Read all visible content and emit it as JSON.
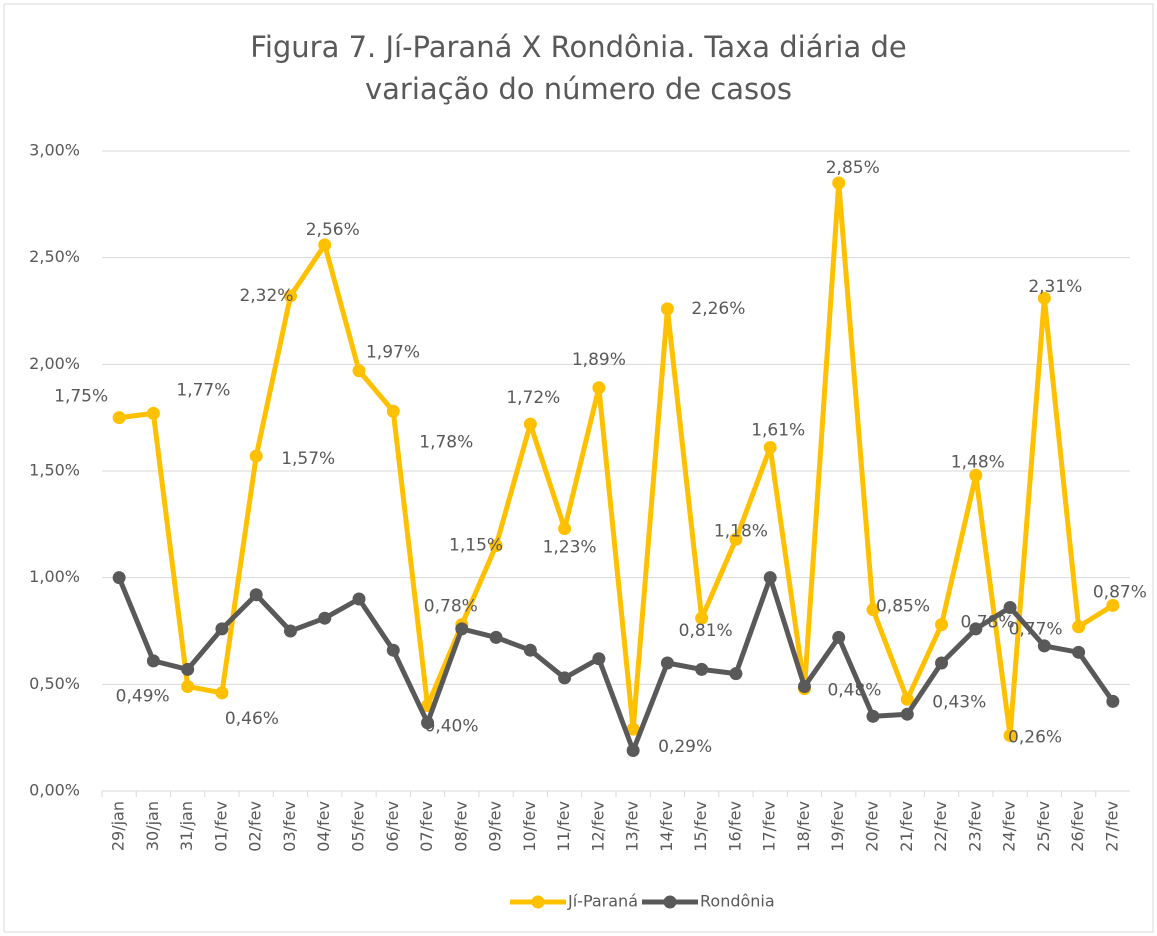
{
  "chart_data": {
    "type": "line",
    "title": "Figura 7. Jí-Paraná X Rondônia. Taxa diária de variação do número de casos",
    "categories": [
      "29/jan",
      "30/jan",
      "31/jan",
      "01/fev",
      "02/fev",
      "03/fev",
      "04/fev",
      "05/fev",
      "06/fev",
      "07/fev",
      "08/fev",
      "09/fev",
      "10/fev",
      "11/fev",
      "12/fev",
      "13/fev",
      "14/fev",
      "15/fev",
      "16/fev",
      "17/fev",
      "18/fev",
      "19/fev",
      "20/fev",
      "21/fev",
      "22/fev",
      "23/fev",
      "24/fev",
      "25/fev",
      "26/fev",
      "27/fev"
    ],
    "series": [
      {
        "name": "Jí-Paraná",
        "color": "#FFC000",
        "values": [
          1.75,
          1.77,
          0.49,
          0.46,
          1.57,
          2.32,
          2.56,
          1.97,
          1.78,
          0.4,
          0.78,
          1.15,
          1.72,
          1.23,
          1.89,
          0.29,
          2.26,
          0.81,
          1.18,
          1.61,
          0.48,
          2.85,
          0.85,
          0.43,
          0.78,
          1.48,
          0.26,
          2.31,
          0.77,
          0.87
        ],
        "value_labels": [
          "1,75%",
          "1,77%",
          "0,49%",
          "0,46%",
          "1,57%",
          "2,32%",
          "2,56%",
          "1,97%",
          "1,78%",
          "0,40%",
          "0,78%",
          "1,15%",
          "1,72%",
          "1,23%",
          "1,89%",
          "0,29%",
          "2,26%",
          "0,81%",
          "1,18%",
          "1,61%",
          "0,48%",
          "2,85%",
          "0,85%",
          "0,43%",
          "0,78%",
          "1,48%",
          "0,26%",
          "2,31%",
          "0,77%",
          "0,87%"
        ]
      },
      {
        "name": "Rondônia",
        "color": "#595959",
        "values": [
          1.0,
          0.61,
          0.57,
          0.76,
          0.92,
          0.75,
          0.81,
          0.9,
          0.66,
          0.32,
          0.76,
          0.72,
          0.66,
          0.53,
          0.62,
          0.19,
          0.6,
          0.57,
          0.55,
          1.0,
          0.49,
          0.72,
          0.35,
          0.36,
          0.6,
          0.76,
          0.86,
          0.68,
          0.65,
          0.42
        ]
      }
    ],
    "ylim": [
      0,
      3
    ],
    "yticks": [
      {
        "value": 0,
        "label": "0,00%"
      },
      {
        "value": 0.5,
        "label": "0,50%"
      },
      {
        "value": 1,
        "label": "1,00%"
      },
      {
        "value": 1.5,
        "label": "1,50%"
      },
      {
        "value": 2,
        "label": "2,00%"
      },
      {
        "value": 2.5,
        "label": "2,50%"
      },
      {
        "value": 3,
        "label": "3,00%"
      }
    ],
    "grid": true,
    "legend": "bottom"
  }
}
